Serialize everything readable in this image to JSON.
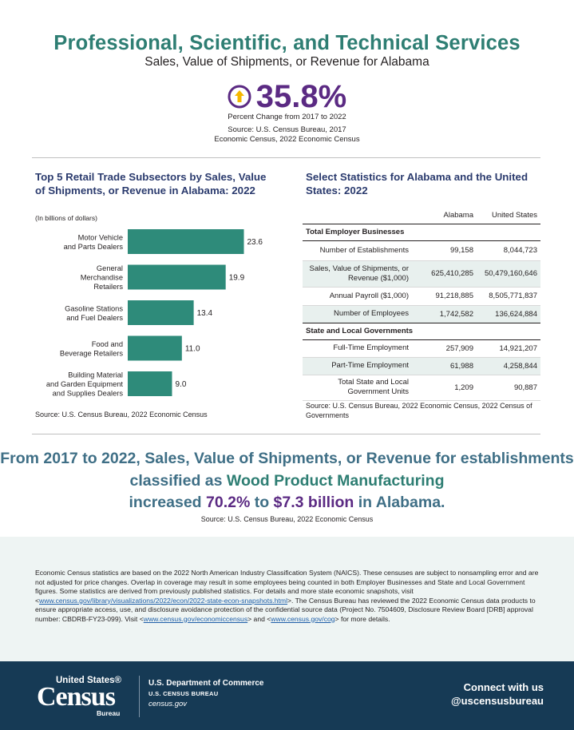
{
  "header": {
    "title": "Professional, Scientific, and Technical Services",
    "subtitle": "Sales, Value of Shipments, or Revenue for Alabama",
    "percent_change": "35.8%",
    "percent_label": "Percent Change from 2017 to 2022",
    "source_line1": "Source: U.S. Census Bureau, 2017",
    "source_line2": "Economic Census, 2022 Economic Census",
    "arrow_color": "#f5b700",
    "accent_purple": "#5b2a83"
  },
  "chart": {
    "title": "Top 5 Retail Trade Subsectors by Sales, Value of Shipments, or Revenue in Alabama: 2022",
    "unit": "(In billions of dollars)",
    "source": "Source: U.S. Census Bureau, 2022 Economic Census",
    "bar_color": "#2e8b7a"
  },
  "chart_data": {
    "type": "bar",
    "orientation": "horizontal",
    "title": "Top 5 Retail Trade Subsectors by Sales, Value of Shipments, or Revenue in Alabama: 2022",
    "ylabel": "(In billions of dollars)",
    "categories": [
      [
        "Motor Vehicle",
        "and Parts Dealers"
      ],
      [
        "General",
        "Merchandise",
        "Retailers"
      ],
      [
        "Gasoline Stations",
        "and Fuel Dealers"
      ],
      [
        "Food and",
        "Beverage Retailers"
      ],
      [
        "Building Material",
        "and Garden Equipment",
        "and Supplies Dealers"
      ]
    ],
    "values": [
      23.6,
      19.9,
      13.4,
      11.0,
      9.0
    ],
    "value_labels": [
      "23.6",
      "19.9",
      "13.4",
      "11.0",
      "9.0"
    ],
    "xlim": [
      0,
      25
    ]
  },
  "stats": {
    "title": "Select Statistics for Alabama and the United States: 2022",
    "col_alabama": "Alabama",
    "col_us": "United States",
    "section1": "Total Employer Businesses",
    "rows1": [
      {
        "label": "Number of Establishments",
        "al": "99,158",
        "us": "8,044,723"
      },
      {
        "label": "Sales, Value of Shipments, or Revenue ($1,000)",
        "al": "625,410,285",
        "us": "50,479,160,646"
      },
      {
        "label": "Annual Payroll ($1,000)",
        "al": "91,218,885",
        "us": "8,505,771,837"
      },
      {
        "label": "Number of Employees",
        "al": "1,742,582",
        "us": "136,624,884"
      }
    ],
    "section2": "State and Local Governments",
    "rows2": [
      {
        "label": "Full-Time Employment",
        "al": "257,909",
        "us": "14,921,207"
      },
      {
        "label": "Part-Time Employment",
        "al": "61,988",
        "us": "4,258,844"
      },
      {
        "label": "Total State and Local Government Units",
        "al": "1,209",
        "us": "90,887"
      }
    ],
    "source": "Source: U.S. Census Bureau, 2022 Economic Census, 2022 Census of Governments"
  },
  "highlight": {
    "part1": "From 2017 to 2022, Sales, Value of Shipments, or Revenue for establishments classified as ",
    "industry": "Wood Product Manufacturing",
    "part2": "increased ",
    "percent": "70.2%",
    "part3": " to ",
    "amount": "$7.3 billion",
    "part4": " in Alabama.",
    "source": "Source: U.S. Census Bureau, 2022 Economic Census"
  },
  "notes": {
    "text1": "Economic Census statistics are based on the 2022 North American Industry Classification System (NAICS). These censuses are subject to nonsampling error and are not adjusted for price changes. Overlap in coverage may result in some employees being counted in both Employer Businesses and State and Local Government figures. Some statistics are derived from previously published statistics. For details and more state economic snapshots, visit <",
    "link1": "www.census.gov/library/visualizations/2022/econ/2022-state-econ-snapshots.html",
    "text2": ">. The Census Bureau has reviewed the 2022 Economic Census data products to ensure appropriate access, use, and disclosure avoidance protection of the confidential source data (Project No. 7504609, Disclosure Review Board [DRB] approval number: CBDRB-FY23-099). Visit <",
    "link2": "www.census.gov/economiccensus",
    "text3": "> and <",
    "link3": "www.census.gov/cog",
    "text4": "> for more details."
  },
  "footer": {
    "logo_top": "United States®",
    "logo_main": "Census",
    "logo_bureau": "Bureau",
    "dept": "U.S. Department of Commerce",
    "dept2": "U.S. CENSUS BUREAU",
    "dept3": "census.gov",
    "connect1": "Connect with us",
    "connect2": "@uscensusbureau",
    "bg_color": "#163a55"
  }
}
